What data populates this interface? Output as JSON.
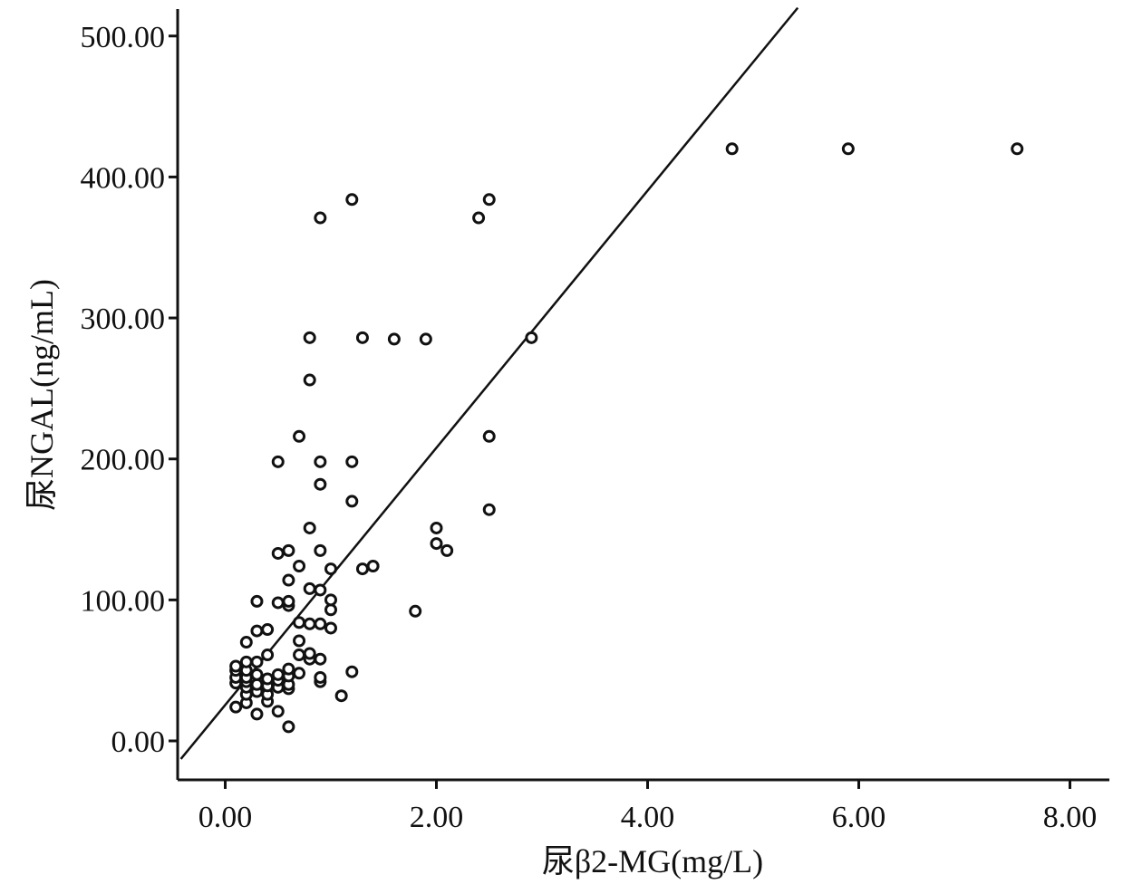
{
  "chart_data": {
    "type": "scatter",
    "xlabel": "尿β2-MG(mg/L)",
    "ylabel": "尿NGAL(ng/mL)",
    "xlim": [
      -0.42,
      8.4
    ],
    "ylim": [
      -28,
      520
    ],
    "x_ticks": [
      0,
      2,
      4,
      6,
      8
    ],
    "y_ticks": [
      0,
      100,
      200,
      300,
      400,
      500
    ],
    "x_tick_labels": [
      "0.00",
      "2.00",
      "4.00",
      "6.00",
      "8.00"
    ],
    "y_tick_labels": [
      "0.00",
      "100.00",
      "200.00",
      "300.00",
      "400.00",
      "500.00"
    ],
    "grid": false,
    "fit_line": {
      "intercept": 25.5,
      "slope": 91.2
    },
    "points": [
      {
        "x": 0.1,
        "y": 24
      },
      {
        "x": 0.1,
        "y": 41
      },
      {
        "x": 0.1,
        "y": 45
      },
      {
        "x": 0.1,
        "y": 50
      },
      {
        "x": 0.1,
        "y": 53
      },
      {
        "x": 0.2,
        "y": 27
      },
      {
        "x": 0.2,
        "y": 33
      },
      {
        "x": 0.2,
        "y": 38
      },
      {
        "x": 0.2,
        "y": 42
      },
      {
        "x": 0.2,
        "y": 45
      },
      {
        "x": 0.2,
        "y": 50
      },
      {
        "x": 0.2,
        "y": 56
      },
      {
        "x": 0.2,
        "y": 70
      },
      {
        "x": 0.3,
        "y": 19
      },
      {
        "x": 0.3,
        "y": 35
      },
      {
        "x": 0.3,
        "y": 40
      },
      {
        "x": 0.3,
        "y": 47
      },
      {
        "x": 0.3,
        "y": 56
      },
      {
        "x": 0.3,
        "y": 78
      },
      {
        "x": 0.3,
        "y": 99
      },
      {
        "x": 0.4,
        "y": 28
      },
      {
        "x": 0.4,
        "y": 33
      },
      {
        "x": 0.4,
        "y": 39
      },
      {
        "x": 0.4,
        "y": 44
      },
      {
        "x": 0.4,
        "y": 61
      },
      {
        "x": 0.4,
        "y": 79
      },
      {
        "x": 0.5,
        "y": 21
      },
      {
        "x": 0.5,
        "y": 38
      },
      {
        "x": 0.5,
        "y": 43
      },
      {
        "x": 0.5,
        "y": 47
      },
      {
        "x": 0.5,
        "y": 98
      },
      {
        "x": 0.5,
        "y": 133
      },
      {
        "x": 0.5,
        "y": 198
      },
      {
        "x": 0.6,
        "y": 10
      },
      {
        "x": 0.6,
        "y": 37
      },
      {
        "x": 0.6,
        "y": 40
      },
      {
        "x": 0.6,
        "y": 46
      },
      {
        "x": 0.6,
        "y": 51
      },
      {
        "x": 0.6,
        "y": 96
      },
      {
        "x": 0.6,
        "y": 99
      },
      {
        "x": 0.6,
        "y": 114
      },
      {
        "x": 0.6,
        "y": 135
      },
      {
        "x": 0.7,
        "y": 48
      },
      {
        "x": 0.7,
        "y": 61
      },
      {
        "x": 0.7,
        "y": 71
      },
      {
        "x": 0.7,
        "y": 84
      },
      {
        "x": 0.7,
        "y": 124
      },
      {
        "x": 0.7,
        "y": 216
      },
      {
        "x": 0.8,
        "y": 58
      },
      {
        "x": 0.8,
        "y": 62
      },
      {
        "x": 0.8,
        "y": 83
      },
      {
        "x": 0.8,
        "y": 108
      },
      {
        "x": 0.8,
        "y": 151
      },
      {
        "x": 0.8,
        "y": 256
      },
      {
        "x": 0.8,
        "y": 286
      },
      {
        "x": 0.9,
        "y": 42
      },
      {
        "x": 0.9,
        "y": 45
      },
      {
        "x": 0.9,
        "y": 58
      },
      {
        "x": 0.9,
        "y": 83
      },
      {
        "x": 0.9,
        "y": 107
      },
      {
        "x": 0.9,
        "y": 135
      },
      {
        "x": 0.9,
        "y": 182
      },
      {
        "x": 0.9,
        "y": 198
      },
      {
        "x": 0.9,
        "y": 371
      },
      {
        "x": 1.0,
        "y": 80
      },
      {
        "x": 1.0,
        "y": 93
      },
      {
        "x": 1.0,
        "y": 100
      },
      {
        "x": 1.0,
        "y": 122
      },
      {
        "x": 1.1,
        "y": 32
      },
      {
        "x": 1.2,
        "y": 49
      },
      {
        "x": 1.2,
        "y": 170
      },
      {
        "x": 1.2,
        "y": 198
      },
      {
        "x": 1.2,
        "y": 384
      },
      {
        "x": 1.3,
        "y": 122
      },
      {
        "x": 1.3,
        "y": 286
      },
      {
        "x": 1.4,
        "y": 124
      },
      {
        "x": 1.6,
        "y": 285
      },
      {
        "x": 1.8,
        "y": 92
      },
      {
        "x": 1.9,
        "y": 285
      },
      {
        "x": 2.0,
        "y": 140
      },
      {
        "x": 2.0,
        "y": 151
      },
      {
        "x": 2.1,
        "y": 135
      },
      {
        "x": 2.4,
        "y": 371
      },
      {
        "x": 2.5,
        "y": 164
      },
      {
        "x": 2.5,
        "y": 216
      },
      {
        "x": 2.5,
        "y": 384
      },
      {
        "x": 2.9,
        "y": 286
      },
      {
        "x": 4.8,
        "y": 420
      },
      {
        "x": 5.9,
        "y": 420
      },
      {
        "x": 7.5,
        "y": 420
      }
    ]
  }
}
